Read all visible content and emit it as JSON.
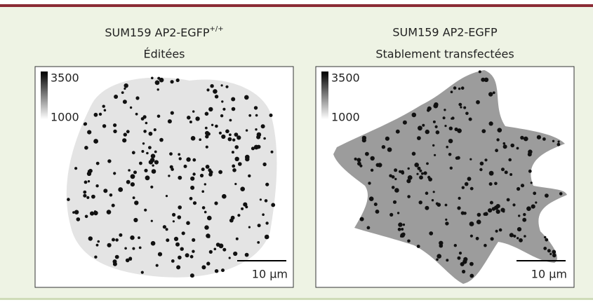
{
  "panels": [
    {
      "title": "SUM159 AP2-EGFP",
      "title_superscript": "+/+",
      "subtitle": "Éditées",
      "colorbar": {
        "max_label": "3500",
        "min_label": "1000"
      },
      "scale_bar": "10 µm"
    },
    {
      "title": "SUM159 AP2-EGFP",
      "subtitle": "Stablement transfectées",
      "colorbar": {
        "max_label": "3500",
        "min_label": "1000"
      },
      "scale_bar": "10 µm"
    }
  ]
}
